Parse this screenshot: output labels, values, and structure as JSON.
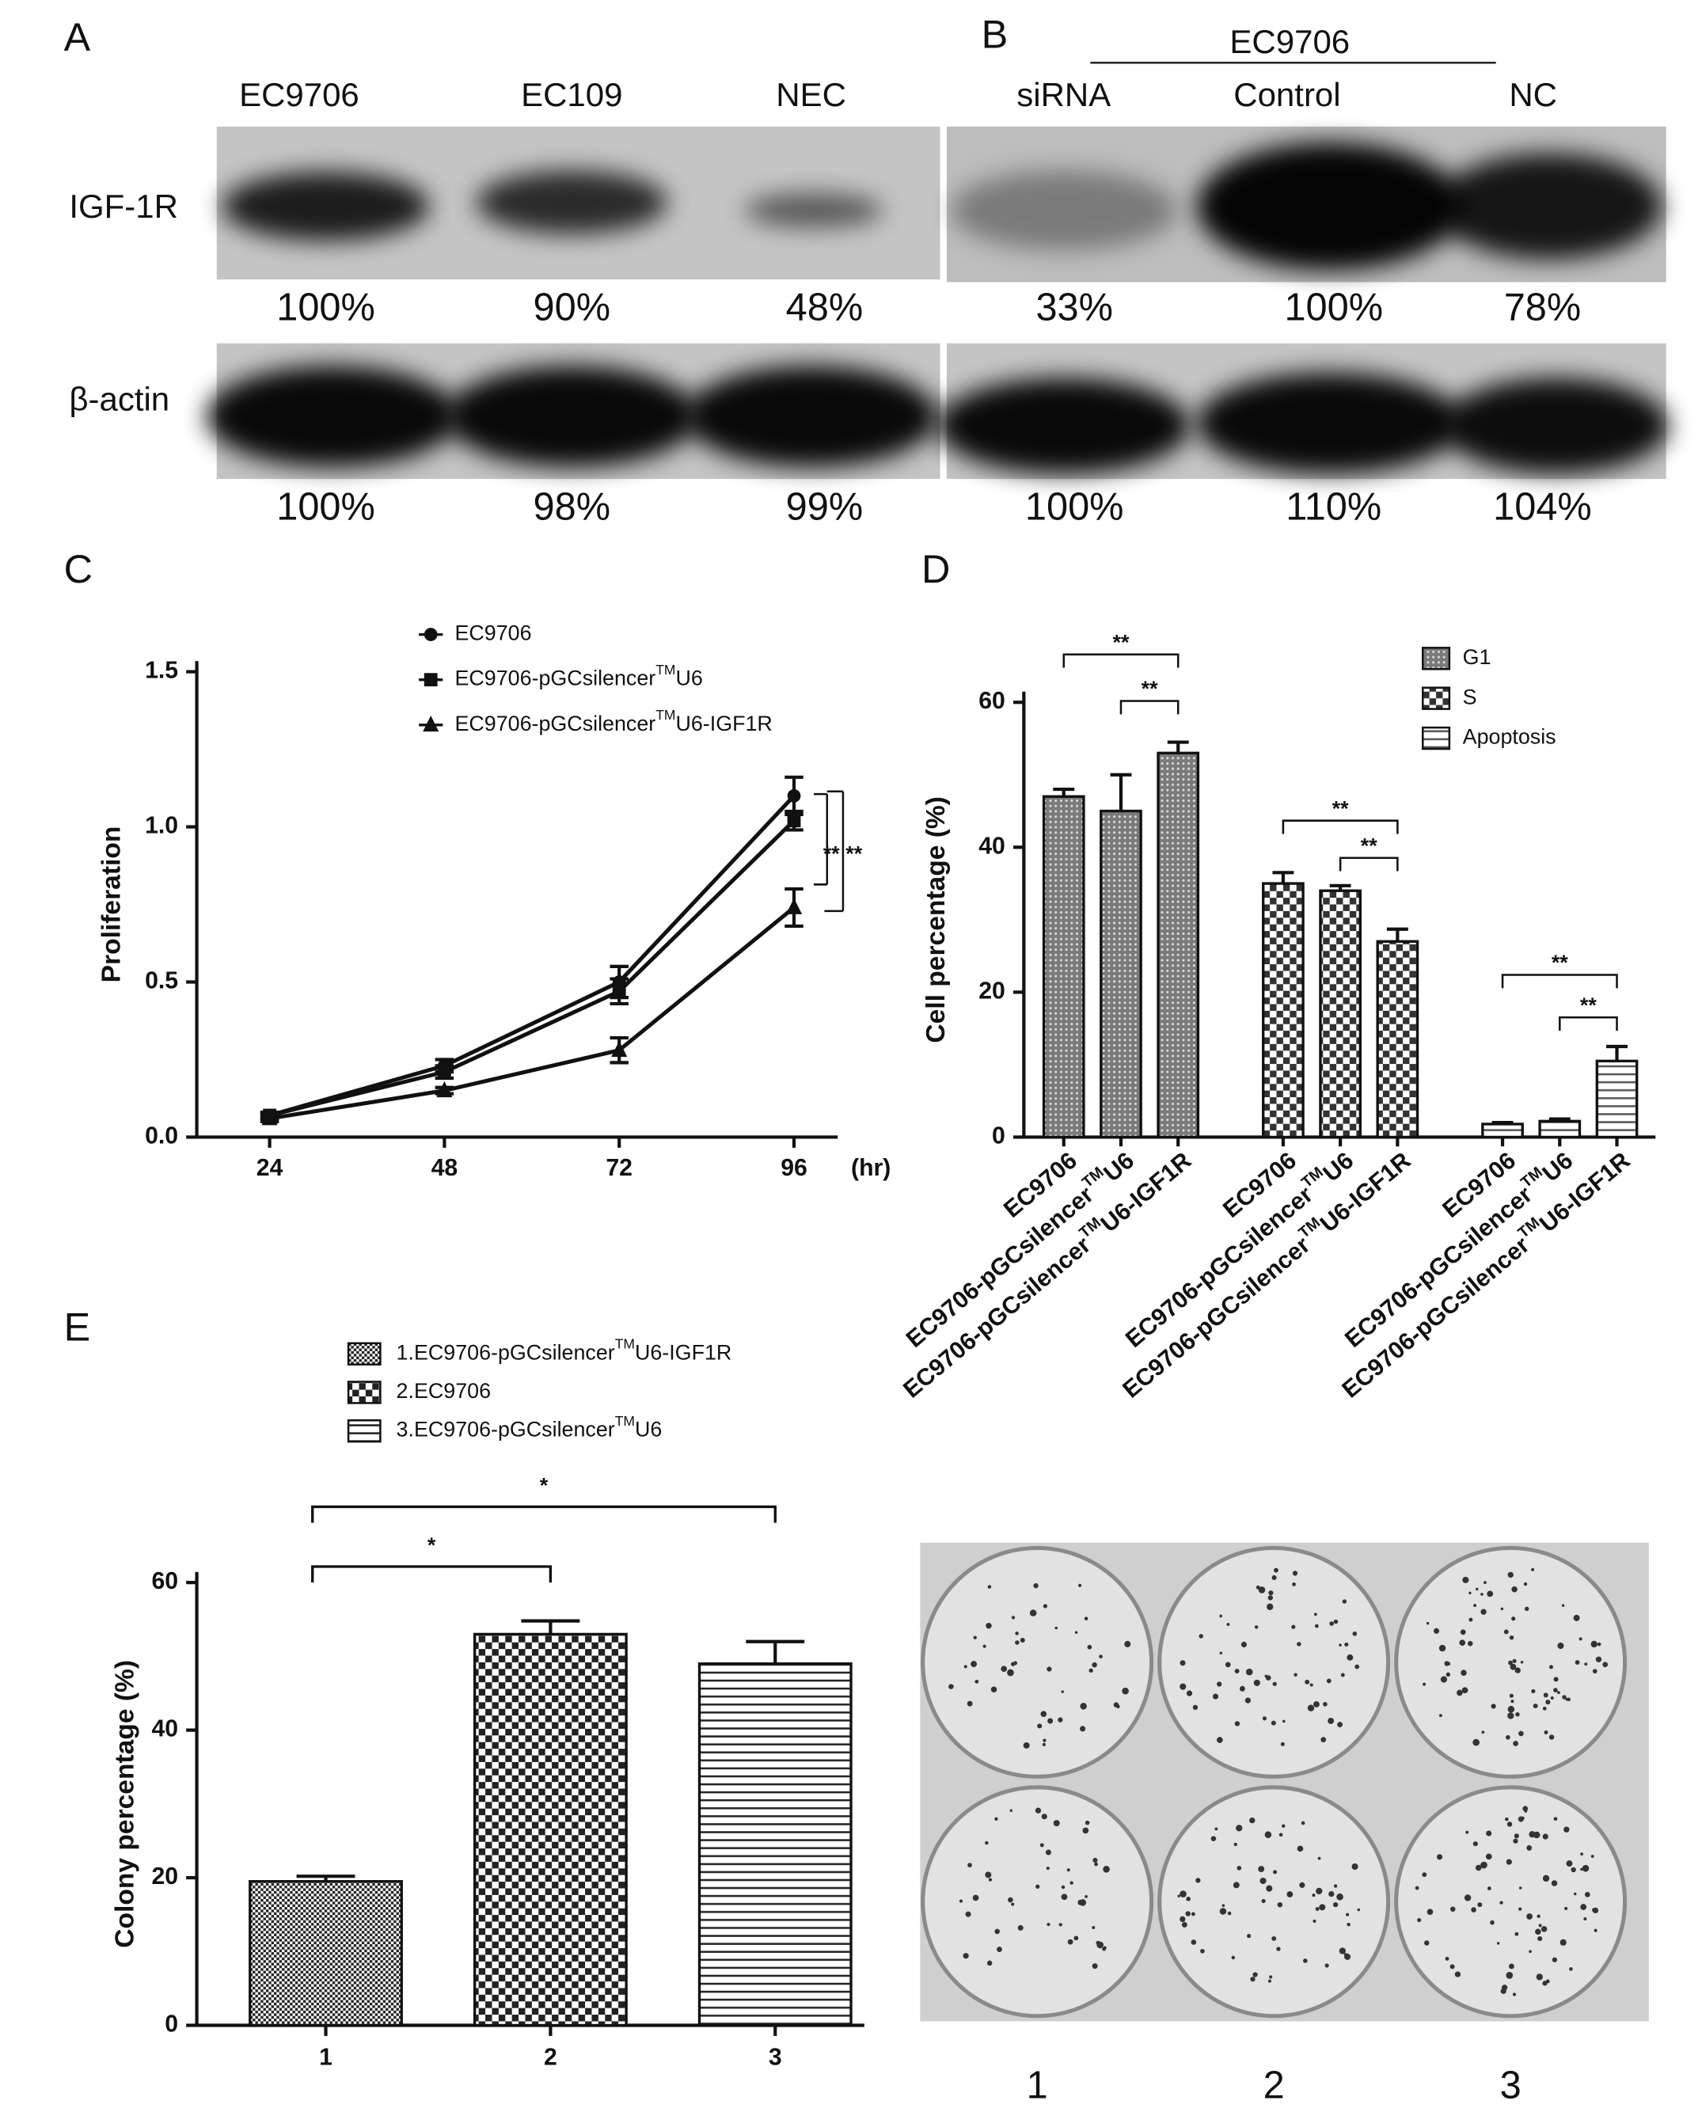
{
  "figure": {
    "panel_labels": [
      "A",
      "B",
      "C",
      "D",
      "E"
    ]
  },
  "blots": [
    {
      "lanes": [
        "EC9706",
        "EC109",
        "NEC"
      ],
      "rows": [
        {
          "label": "IGF-1R",
          "percent": [
            "100%",
            "90%",
            "48%"
          ]
        },
        {
          "label": "β-actin",
          "percent": [
            "100%",
            "98%",
            "99%"
          ]
        }
      ]
    },
    {
      "header": "EC9706",
      "lanes": [
        "siRNA",
        "Control",
        "NC"
      ],
      "rows": [
        {
          "percent": [
            "33%",
            "100%",
            "78%"
          ]
        },
        {
          "percent": [
            "100%",
            "110%",
            "104%"
          ]
        }
      ]
    }
  ],
  "chart_data": [
    {
      "type": "line",
      "ylabel": "Proliferation",
      "xlabel": "(hr)",
      "x": [
        24,
        48,
        72,
        96
      ],
      "xlim": [
        14,
        102
      ],
      "xticks": [
        24,
        48,
        72,
        96
      ],
      "ylim": [
        0,
        1.5
      ],
      "yticks": [
        {
          "value": 0,
          "label": "0.0"
        },
        0.5,
        {
          "value": 1,
          "label": "1.0"
        },
        1.5
      ],
      "series": [
        {
          "name": "EC9706",
          "marker": "circle",
          "color": "#111",
          "values": [
            0.07,
            0.23,
            0.5,
            1.1
          ],
          "errors": [
            0.01,
            0.02,
            0.05,
            0.06
          ]
        },
        {
          "name": [
            "EC9706-pGCsilencer",
            "TM",
            "U6"
          ],
          "marker": "square",
          "color": "#111",
          "values": [
            0.07,
            0.21,
            0.47,
            1.02
          ],
          "errors": [
            0.01,
            0.02,
            0.04,
            0.03
          ]
        },
        {
          "name": [
            "EC9706-pGCsilencer",
            "TM",
            "U6-IGF1R"
          ],
          "marker": "triangle",
          "color": "#111",
          "values": [
            0.06,
            0.15,
            0.28,
            0.74
          ],
          "errors": [
            0.01,
            0.01,
            0.04,
            0.06
          ]
        }
      ],
      "annotations": [
        "**",
        "**"
      ]
    },
    {
      "type": "bar",
      "ylabel": "Cell percentage (%)",
      "categories": [
        [
          "EC9706"
        ],
        [
          "EC9706-pGCsilencer",
          "TM",
          "U6"
        ],
        [
          "EC9706-pGCsilencer",
          "TM",
          "U6-IGF1R"
        ]
      ],
      "ylim": [
        0,
        60
      ],
      "yticks": [
        0,
        20,
        40,
        60
      ],
      "series": [
        {
          "name": "G1",
          "pattern": "dots",
          "color": "#7a7a7a",
          "values": [
            47,
            45,
            53
          ],
          "errors": [
            1,
            5,
            1.5
          ]
        },
        {
          "name": "S",
          "pattern": "check",
          "color": "#333",
          "values": [
            35,
            34,
            27
          ],
          "errors": [
            1.5,
            0.7,
            1.7
          ]
        },
        {
          "name": "Apoptosis",
          "pattern": "stripes",
          "color": "#555",
          "values": [
            1.8,
            2.2,
            10.5
          ],
          "errors": [
            0.2,
            0.3,
            2
          ]
        }
      ],
      "annotations": [
        "**",
        "**",
        "**",
        "**",
        "**",
        "**"
      ]
    },
    {
      "type": "bar",
      "ylabel": "Colony percentage (%)",
      "categories": [
        "1",
        "2",
        "3"
      ],
      "ylim": [
        0,
        60
      ],
      "yticks": [
        0,
        20,
        40,
        60
      ],
      "values": [
        19.5,
        53,
        49
      ],
      "errors": [
        0.7,
        1.8,
        3
      ],
      "patterns": [
        "fine",
        "check",
        "stripes"
      ],
      "color": "#222",
      "legend": [
        [
          "1.EC9706-pGCsilencer",
          "TM",
          "U6-IGF1R"
        ],
        [
          "2.EC9706"
        ],
        [
          "3.EC9706-pGCsilencer",
          "TM",
          "U6"
        ]
      ],
      "annotations": [
        "*",
        "*"
      ]
    }
  ],
  "photo": {
    "labels": [
      "1",
      "2",
      "3"
    ]
  }
}
